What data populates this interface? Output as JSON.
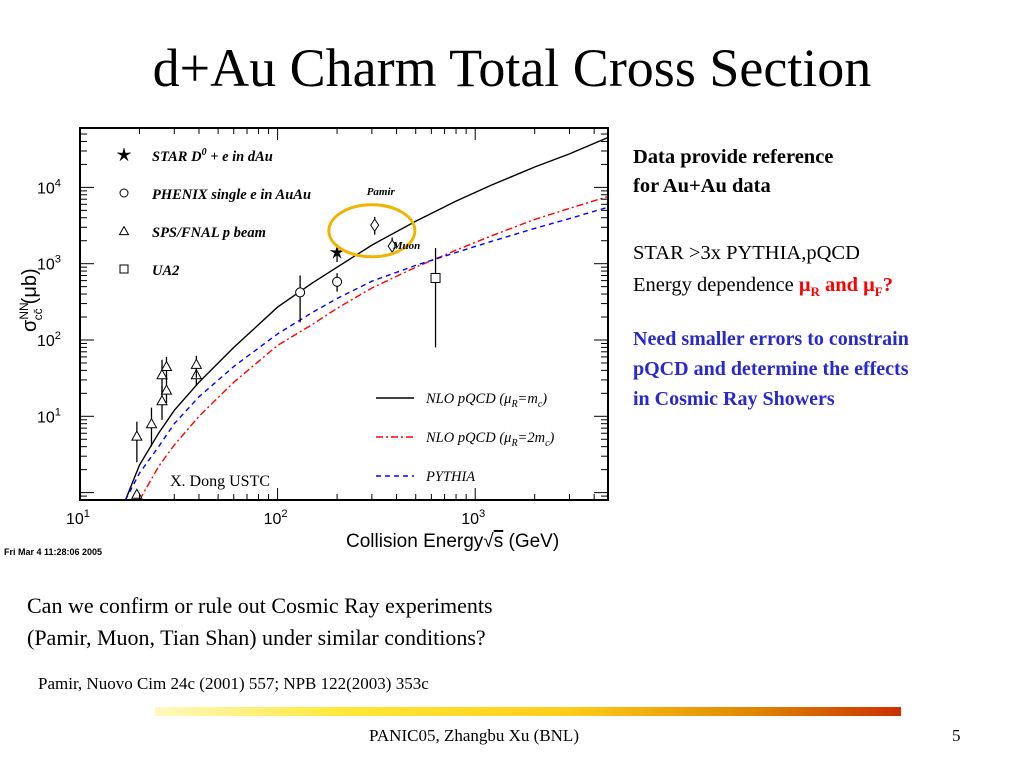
{
  "slide": {
    "title": "d+Au Charm Total Cross Section",
    "side_line1": "Data provide reference",
    "side_line2": "for Au+Au data",
    "side_line3": "STAR >3x PYTHIA,pQCD",
    "side_line4_prefix": "Energy dependence ",
    "mu_r_mu": "μ",
    "mu_r_sub": "R",
    "and_word": " and ",
    "mu_f_mu": "μ",
    "mu_f_sub": "F",
    "question_mark": "?",
    "blue_line1": "Need smaller errors to constrain",
    "blue_line2": "pQCD and determine the effects",
    "blue_line3": "in Cosmic Ray Showers",
    "question_line1": "Can we confirm or rule out Cosmic Ray experiments",
    "question_line2": "(Pamir, Muon, Tian Shan) under similar conditions?",
    "reference": "Pamir, Nuovo Cim 24c (2001) 557; NPB 122(2003) 353c",
    "footer": "PANIC05,  Zhangbu Xu (BNL)",
    "page_number": "5",
    "accent_color": "#f0b400"
  },
  "chart_data": {
    "type": "scatter",
    "x_scale": "log",
    "y_scale": "log",
    "xlim": [
      10,
      4700
    ],
    "ylim": [
      0.8,
      60000
    ],
    "xlabel_main": "Collision Energy",
    "xlabel_unit": "(GeV)",
    "ylabel_sub": "cc̄",
    "ylabel_sup": "NN",
    "ylabel_unit": "(μb)",
    "x_ticks": [
      {
        "value": 10,
        "base": "10",
        "exp": "1"
      },
      {
        "value": 100,
        "base": "10",
        "exp": "2"
      },
      {
        "value": 1000,
        "base": "10",
        "exp": "3"
      }
    ],
    "y_ticks": [
      {
        "value": 10,
        "base": "10",
        "exp": "1"
      },
      {
        "value": 100,
        "base": "10",
        "exp": "2"
      },
      {
        "value": 1000,
        "base": "10",
        "exp": "3"
      },
      {
        "value": 10000,
        "base": "10",
        "exp": "4"
      }
    ],
    "timestamp": "Fri Mar  4 11:28:06 2005",
    "watermark": "X. Dong USTC",
    "legend_points": [
      {
        "marker": "star",
        "label_main": "STAR D",
        "label_sup": "0",
        "label_rest": " + e in dAu"
      },
      {
        "marker": "circle",
        "label_main": "PHENIX single e in AuAu",
        "label_sup": "",
        "label_rest": ""
      },
      {
        "marker": "triangle",
        "label_main": "SPS/FNAL p beam",
        "label_sup": "",
        "label_rest": ""
      },
      {
        "marker": "square",
        "label_main": "UA2",
        "label_sup": "",
        "label_rest": ""
      }
    ],
    "legend_lines": [
      {
        "style": "solid",
        "color": "#000000",
        "text_a": "NLO pQCD (",
        "mu": "μ",
        "sub": "R",
        "text_b": "=m",
        "sub2": "c",
        "text_c": ")"
      },
      {
        "style": "dashdot",
        "color": "#ff0000",
        "text_a": "NLO pQCD (",
        "mu": "μ",
        "sub": "R",
        "text_b": "=2m",
        "sub2": "c",
        "text_c": ")"
      },
      {
        "style": "dashed",
        "color": "#0000ff",
        "text_a": "PYTHIA",
        "mu": "",
        "sub": "",
        "text_b": "",
        "sub2": "",
        "text_c": ""
      }
    ],
    "annotations": [
      {
        "text": "Pamir",
        "x": 310,
        "y": 9000
      },
      {
        "text": "Muon",
        "x": 420,
        "y": 1750
      }
    ],
    "highlight_ellipse": {
      "x_center": 300,
      "y_center": 2700,
      "color": "#f0b400"
    },
    "series": [
      {
        "name": "NLO pQCD (μR=mc)",
        "style": "solid",
        "color": "#000000",
        "x": [
          17,
          20,
          25,
          30,
          40,
          60,
          100,
          150,
          200,
          300,
          500,
          800,
          1200,
          2000,
          3000,
          4700
        ],
        "y": [
          0.8,
          2.3,
          6,
          12,
          28,
          80,
          270,
          560,
          900,
          1750,
          3600,
          6600,
          10600,
          18500,
          27500,
          45000
        ]
      },
      {
        "name": "NLO pQCD (μR=2mc)",
        "style": "dashdot",
        "color": "#ff0000",
        "x": [
          20,
          25,
          30,
          40,
          60,
          100,
          150,
          200,
          300,
          500,
          800,
          1200,
          2000,
          3000,
          4700
        ],
        "y": [
          0.8,
          2.2,
          4.2,
          10,
          28,
          85,
          160,
          260,
          480,
          900,
          1500,
          2300,
          3800,
          5300,
          7600
        ]
      },
      {
        "name": "PYTHIA",
        "style": "dashed",
        "color": "#0000ff",
        "x": [
          17,
          20,
          25,
          30,
          40,
          60,
          100,
          150,
          200,
          300,
          500,
          800,
          1200,
          2000,
          3000,
          4700
        ],
        "y": [
          0.8,
          1.8,
          4,
          8,
          18,
          45,
          120,
          230,
          350,
          590,
          950,
          1400,
          1950,
          2900,
          3900,
          5500
        ]
      }
    ],
    "points": [
      {
        "marker": "star",
        "x": 200,
        "y": 1400,
        "ylo": 1050,
        "yhi": 1800
      },
      {
        "marker": "circle",
        "x": 130,
        "y": 420,
        "ylo": 170,
        "yhi": 700
      },
      {
        "marker": "circle",
        "x": 200,
        "y": 580,
        "ylo": 430,
        "yhi": 750
      },
      {
        "marker": "diamond",
        "x": 310,
        "y": 3200,
        "ylo": 2400,
        "yhi": 4100
      },
      {
        "marker": "diamond",
        "x": 380,
        "y": 1700,
        "ylo": 1300,
        "yhi": 2200
      },
      {
        "marker": "square",
        "x": 630,
        "y": 650,
        "ylo": 80,
        "yhi": 1600
      },
      {
        "marker": "triangle",
        "x": 19.4,
        "y": 0.95,
        "ylo": 0.85,
        "yhi": 1.05
      },
      {
        "marker": "triangle",
        "x": 19.4,
        "y": 5.5,
        "ylo": 2.5,
        "yhi": 8.5
      },
      {
        "marker": "triangle",
        "x": 23,
        "y": 8,
        "ylo": 4,
        "yhi": 13
      },
      {
        "marker": "triangle",
        "x": 26,
        "y": 16,
        "ylo": 9,
        "yhi": 25
      },
      {
        "marker": "triangle",
        "x": 26,
        "y": 35,
        "ylo": 20,
        "yhi": 55
      },
      {
        "marker": "triangle",
        "x": 27.4,
        "y": 22,
        "ylo": 15,
        "yhi": 32
      },
      {
        "marker": "triangle",
        "x": 27.4,
        "y": 45,
        "ylo": 30,
        "yhi": 60
      },
      {
        "marker": "triangle",
        "x": 38.8,
        "y": 35,
        "ylo": 25,
        "yhi": 48
      },
      {
        "marker": "triangle",
        "x": 38.8,
        "y": 48,
        "ylo": 32,
        "yhi": 62
      }
    ]
  }
}
